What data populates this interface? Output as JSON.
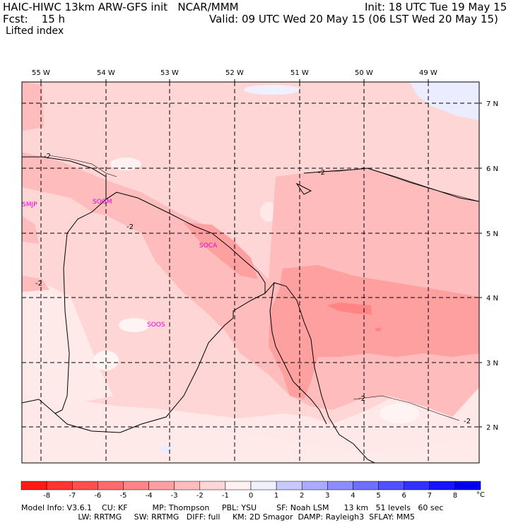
{
  "header": {
    "model_line": "HAIC-HIWC 13km ARW-GFS init   NCAR/MMM",
    "fcst_line": "Fcst:    15 h",
    "field": "Lifted index",
    "init_line": "Init: 18 UTC Tue 19 May 15",
    "valid_line": "Valid: 09 UTC Wed 20 May 15 (06 LST Wed 20 May 15)"
  },
  "longitude_labels": [
    "55 W",
    "54 W",
    "53 W",
    "52 W",
    "51 W",
    "50 W",
    "49 W"
  ],
  "latitude_labels": [
    "7 N",
    "6 N",
    "5 N",
    "4 N",
    "3 N",
    "2 N"
  ],
  "stations": [
    "SMJP",
    "SOGM",
    "SOCA",
    "SOOS"
  ],
  "contour_labels": [
    "-2",
    "-2",
    "-2",
    "-2",
    "-2",
    "-2"
  ],
  "colorbar": {
    "ticks": [
      "-8",
      "-7",
      "-6",
      "-5",
      "-4",
      "-3",
      "-2",
      "-1",
      "0",
      "1",
      "2",
      "3",
      "4",
      "5",
      "6",
      "7",
      "8"
    ],
    "unit": "°C",
    "colors": [
      "#ff1a1a",
      "#ff3535",
      "#ff5050",
      "#ff6a6a",
      "#ff8585",
      "#ffa0a0",
      "#ffbcbc",
      "#ffd6d6",
      "#fff1f1",
      "#f0f0ff",
      "#c8c8ff",
      "#aaaaff",
      "#8c8cff",
      "#6e6eff",
      "#5050ff",
      "#3232ff",
      "#1414ff",
      "#0000f0"
    ]
  },
  "footer": {
    "line1": "Model Info: V3.6.1    CU: KF          MP: Thompson     PBL: YSU        SF: Noah LSM      13 km   51 levels   60 sec",
    "line2": "                       LW: RRTMG     SW: RRTMG   DIFF: full     KM: 2D Smagor  DAMP: Rayleigh3  SFLAY: MM5"
  }
}
